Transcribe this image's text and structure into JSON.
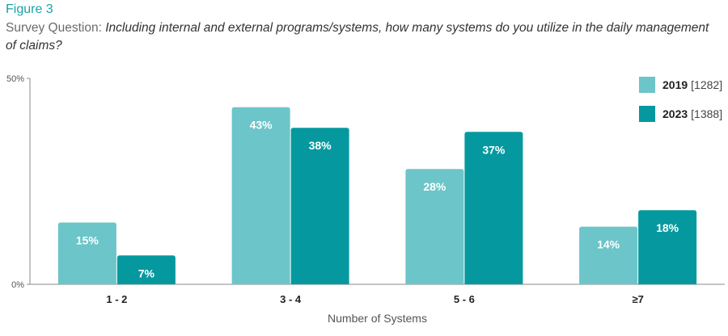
{
  "figure_label": "Figure 3",
  "question_prefix": "Survey Question:",
  "question_text": "Including internal and external programs/systems, how many systems do you utilize in the daily management of claims?",
  "colors": {
    "series_2019": "#6cc5c8",
    "series_2023": "#05999f",
    "accent": "#1aa3a8"
  },
  "legend": [
    {
      "year": "2019",
      "n": "[1282]"
    },
    {
      "year": "2023",
      "n": "[1388]"
    }
  ],
  "chart_data": {
    "type": "bar",
    "categories": [
      "1 - 2",
      "3 - 4",
      "5 - 6",
      "≥7"
    ],
    "series": [
      {
        "name": "2019",
        "values": [
          15,
          43,
          28,
          14
        ],
        "labels": [
          "15%",
          "43%",
          "28%",
          "14%"
        ]
      },
      {
        "name": "2023",
        "values": [
          7,
          38,
          37,
          18
        ],
        "labels": [
          "7%",
          "38%",
          "37%",
          "18%"
        ]
      }
    ],
    "xlabel": "Number of Systems",
    "ylabel": "",
    "ylim": [
      0,
      50
    ],
    "yticks": [
      "0%",
      "50%"
    ],
    "grid": false,
    "legend_position": "top-right"
  }
}
